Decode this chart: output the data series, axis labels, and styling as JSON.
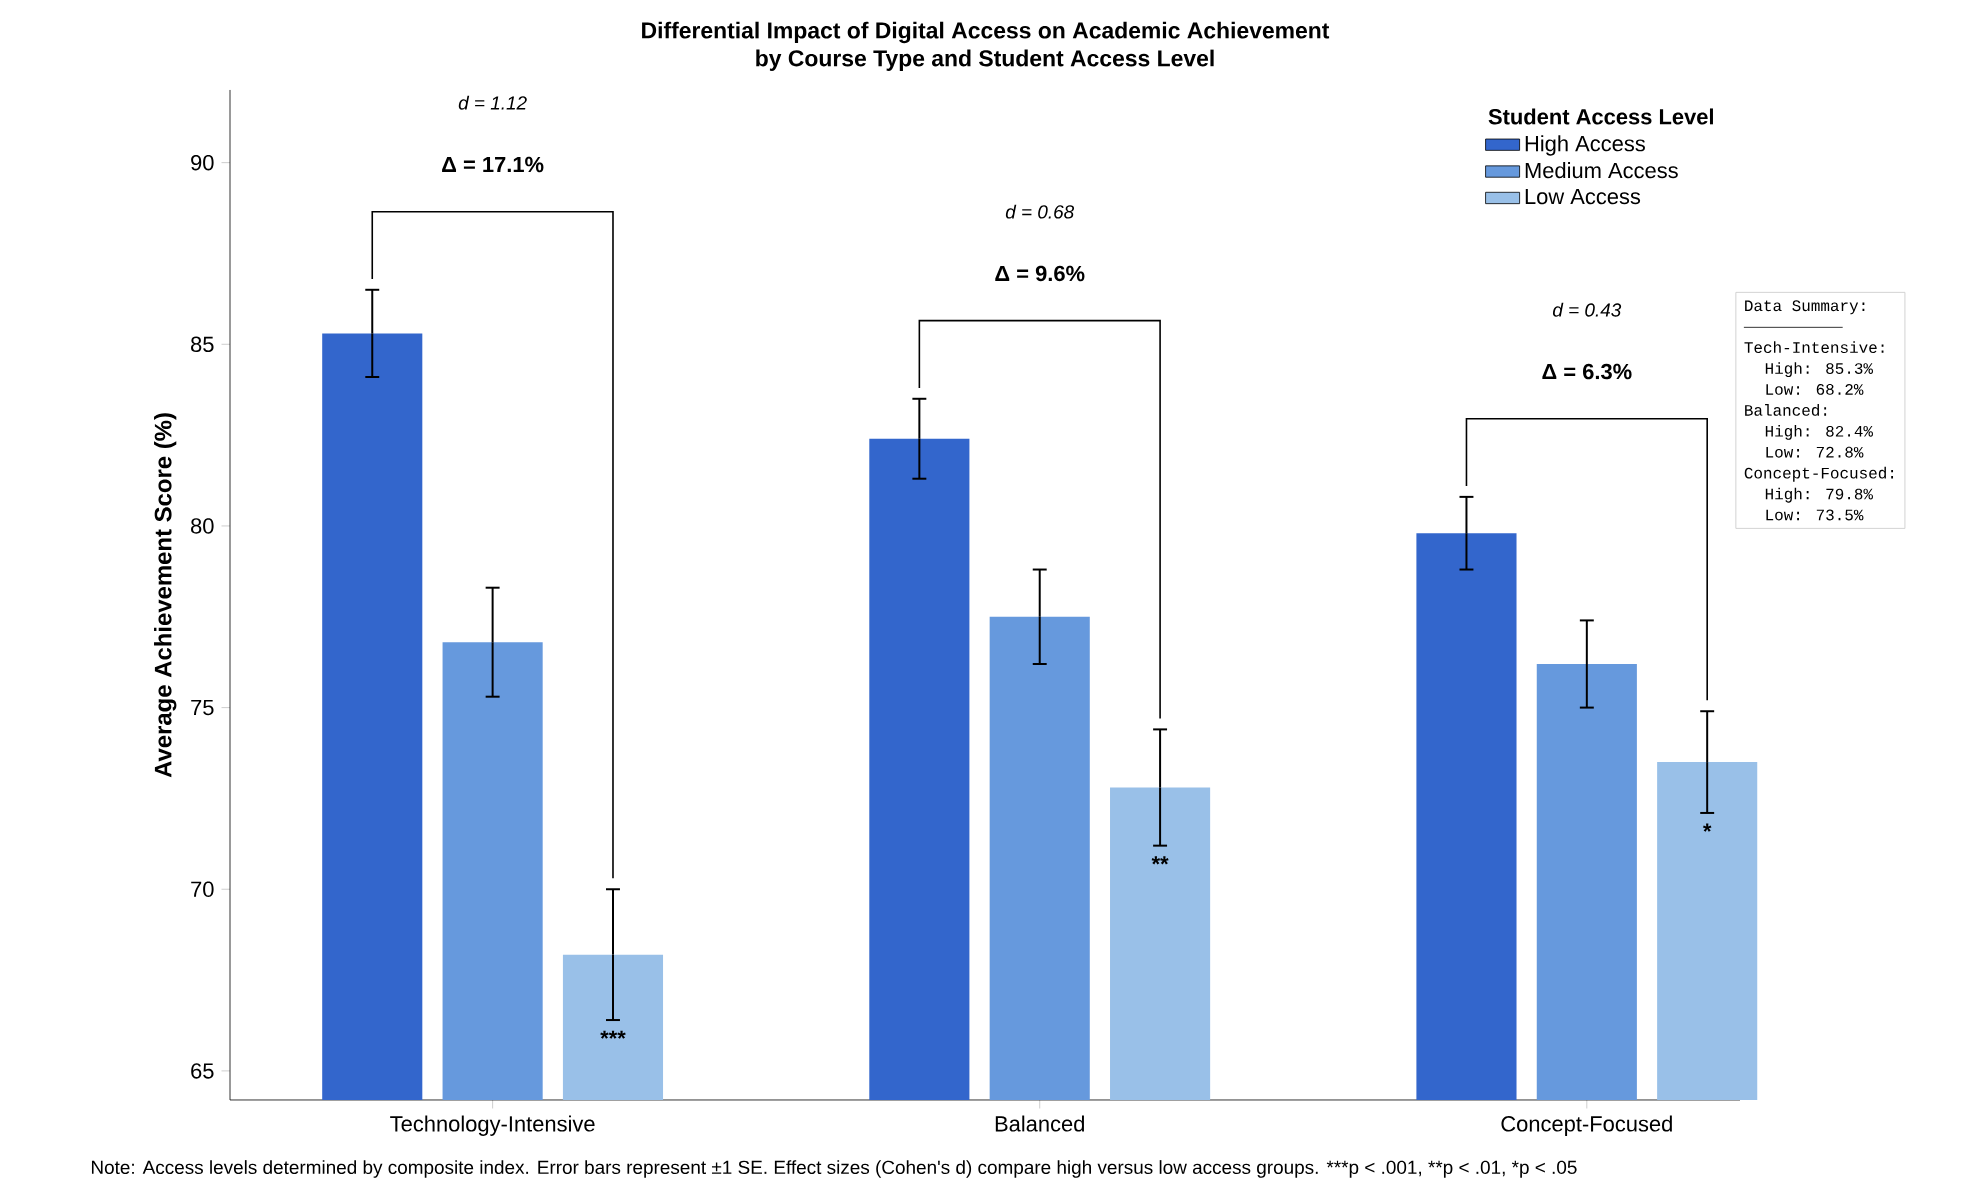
{
  "chart_data": {
    "type": "bar",
    "title": "Differential Impact of Digital Access on Academic Achievement",
    "subtitle": "by Course Type and Student Access Level",
    "ylabel": "Average Achievement Score (%)",
    "legend_title": "Student Access Level",
    "categories": [
      "Technology-Intensive",
      "Balanced",
      "Concept-Focused"
    ],
    "series": [
      {
        "name": "High Access",
        "color": "#3366cc",
        "values": [
          85.3,
          82.4,
          79.8
        ],
        "errors": [
          1.2,
          1.1,
          1.0
        ]
      },
      {
        "name": "Medium Access",
        "color": "#6699dd",
        "values": [
          76.8,
          77.5,
          76.2
        ],
        "errors": [
          1.5,
          1.3,
          1.2
        ]
      },
      {
        "name": "Low Access",
        "color": "#99c0e8",
        "values": [
          68.2,
          72.8,
          73.5
        ],
        "errors": [
          1.8,
          1.6,
          1.4
        ]
      }
    ],
    "ylim": [
      64.2,
      92
    ],
    "yticks": [
      65,
      70,
      75,
      80,
      85,
      90
    ],
    "legend": "top right",
    "grid": false,
    "annotations": [
      "d = 1.12",
      "Δ = 17.1%",
      "d = 0.68",
      "Δ = 9.6%",
      "d = 0.43",
      "Δ = 6.3%",
      "***",
      "**",
      "*",
      "Data Summary:",
      "Tech-Intensive:",
      "High: 85.3%",
      "Low:  68.2%",
      "Balanced:",
      "High: 82.4%",
      "Low:  72.8%",
      "Concept-Focused:",
      "High: 79.8%",
      "Low:  73.5%",
      "Note: Access levels determined by composite index. Error bars represent ±1 SE. Effect sizes (Cohen's d) compare high versus low access groups. ***p < .001, **p < .01, *p < .05"
    ]
  }
}
